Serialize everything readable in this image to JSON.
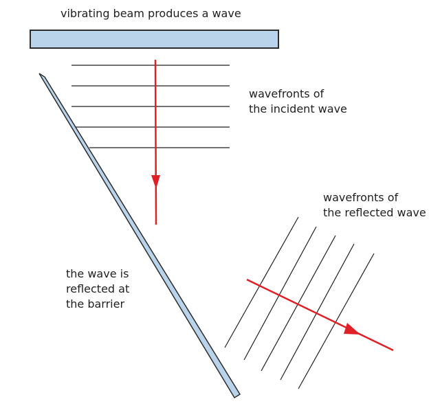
{
  "labels": {
    "beam": "vibrating beam produces a wave",
    "incident": [
      "wavefronts of",
      "the incident wave"
    ],
    "reflected": [
      "wavefronts of",
      "the reflected wave"
    ],
    "barrier": [
      "the wave is",
      "reflected at",
      "the barrier"
    ]
  },
  "colors": {
    "beam_fill": "#b8d3ea",
    "outline": "#2b2b2b",
    "wavefront": "#1f1f1f",
    "arrow": "#e11f26"
  }
}
